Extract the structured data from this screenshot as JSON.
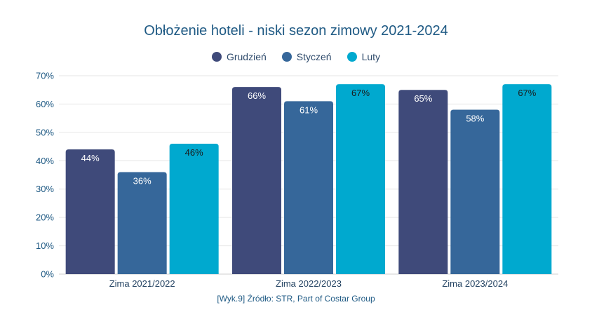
{
  "colors": {
    "accent_title": "#1f5a84",
    "series": [
      "#3f4a7a",
      "#36679a",
      "#00a9cf"
    ],
    "label_light": "#ffffff",
    "label_dark": "#1a1a1a",
    "grid": "#e6e6e6",
    "axis_text": "#1f5a84"
  },
  "chart_data": {
    "type": "bar",
    "title": "Obłożenie hoteli - niski sezon zimowy 2021-2024",
    "categories": [
      "Zima 2021/2022",
      "Zima 2022/2023",
      "Zima 2023/2024"
    ],
    "series": [
      {
        "name": "Grudzień",
        "values": [
          44,
          66,
          65
        ]
      },
      {
        "name": "Styczeń",
        "values": [
          36,
          61,
          58
        ]
      },
      {
        "name": "Luty",
        "values": [
          46,
          67,
          67
        ]
      }
    ],
    "data_labels": [
      [
        "44%",
        "66%",
        "65%"
      ],
      [
        "36%",
        "61%",
        "58%"
      ],
      [
        "46%",
        "67%",
        "67%"
      ]
    ],
    "ylim": [
      0,
      70
    ],
    "yticks": [
      "0%",
      "10%",
      "20%",
      "30%",
      "40%",
      "50%",
      "60%",
      "70%"
    ],
    "xlabel": "",
    "ylabel": "",
    "grid": true,
    "legend_position": "top-center"
  },
  "source": "[Wyk.9] Źródło: STR, Part of Costar Group"
}
